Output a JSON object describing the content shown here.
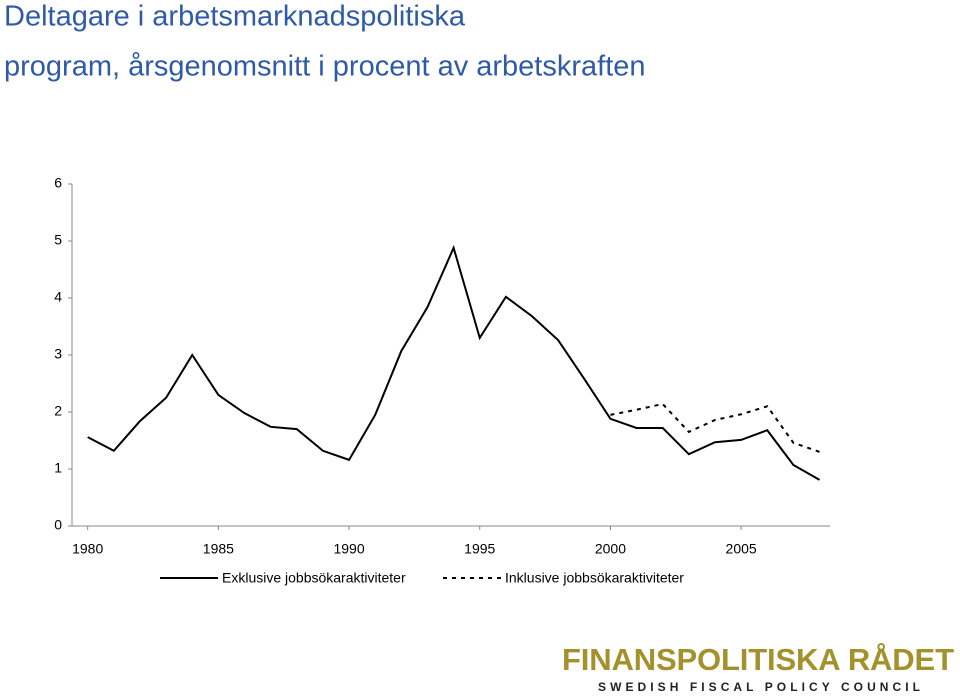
{
  "chart_data": {
    "type": "line",
    "title": [
      "Deltagare i arbetsmarknadspolitiska",
      "program, årsgenomsnitt i procent av arbetskraften"
    ],
    "x": [
      1980,
      1981,
      1982,
      1983,
      1984,
      1985,
      1986,
      1987,
      1988,
      1989,
      1990,
      1991,
      1992,
      1993,
      1994,
      1995,
      1996,
      1997,
      1998,
      1999,
      2000,
      2001,
      2002,
      2003,
      2004,
      2005,
      2006,
      2007,
      2008
    ],
    "series": [
      {
        "name": "Exklusive jobbsökaraktiviteter",
        "color": "#000000",
        "dash": "solid",
        "values": [
          1.56,
          1.32,
          1.84,
          2.25,
          3.0,
          2.3,
          1.98,
          1.74,
          1.7,
          1.32,
          1.16,
          1.95,
          3.07,
          3.84,
          4.88,
          3.3,
          4.02,
          3.68,
          3.26,
          2.58,
          1.88,
          1.72,
          1.72,
          1.26,
          1.47,
          1.51,
          1.68,
          1.07,
          0.81
        ]
      },
      {
        "name": "Inklusive jobbsökaraktiviteter",
        "color": "#000000",
        "dash": "dotted",
        "values": [
          null,
          null,
          null,
          null,
          null,
          null,
          null,
          null,
          null,
          null,
          null,
          null,
          null,
          null,
          null,
          null,
          null,
          null,
          null,
          null,
          1.95,
          2.04,
          2.14,
          1.65,
          1.86,
          1.96,
          2.1,
          1.46,
          1.3
        ]
      }
    ],
    "xlim": [
      1979.4,
      2008.4
    ],
    "xticks": [
      1980,
      1985,
      1990,
      1995,
      2000,
      2005
    ],
    "ylim": [
      0,
      6
    ],
    "yticks": [
      0,
      1,
      2,
      3,
      4,
      5,
      6
    ],
    "grid": false,
    "legend": "bottom"
  },
  "footer": {
    "logo": "FINANSPOLITISKA RÅDET",
    "tagline": "SWEDISH FISCAL POLICY COUNCIL"
  }
}
